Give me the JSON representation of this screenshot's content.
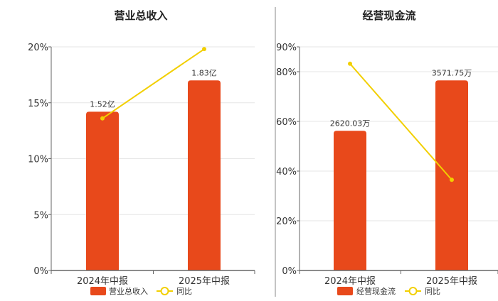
{
  "colors": {
    "bar": "#E8491B",
    "line": "#F2CF00",
    "grid": "#E6E6E6",
    "axis": "#666666",
    "divider": "#888888"
  },
  "chart_data": [
    {
      "type": "bar",
      "title": "营业总收入",
      "categories": [
        "2024年中报",
        "2025年中报"
      ],
      "bar_series_name": "营业总收入",
      "bar_data_labels": [
        "1.52亿",
        "1.83亿"
      ],
      "bar_values_pct_axis": [
        14.2,
        17.0
      ],
      "line_series_name": "同比",
      "line_values_pct": [
        13.6,
        19.8
      ],
      "y_ticks": [
        "0%",
        "5%",
        "10%",
        "15%",
        "20%"
      ],
      "ylim": [
        0,
        20
      ]
    },
    {
      "type": "bar",
      "title": "经营现金流",
      "categories": [
        "2024年中报",
        "2025年中报"
      ],
      "bar_series_name": "经营现金流",
      "bar_data_labels": [
        "2620.03万",
        "3571.75万"
      ],
      "bar_values_pct_axis": [
        56.2,
        76.5
      ],
      "line_series_name": "同比",
      "line_values_pct": [
        83.2,
        36.5
      ],
      "y_ticks": [
        "0%",
        "20%",
        "40%",
        "60%",
        "80%",
        "90%"
      ],
      "ylim": [
        0,
        90
      ]
    }
  ]
}
